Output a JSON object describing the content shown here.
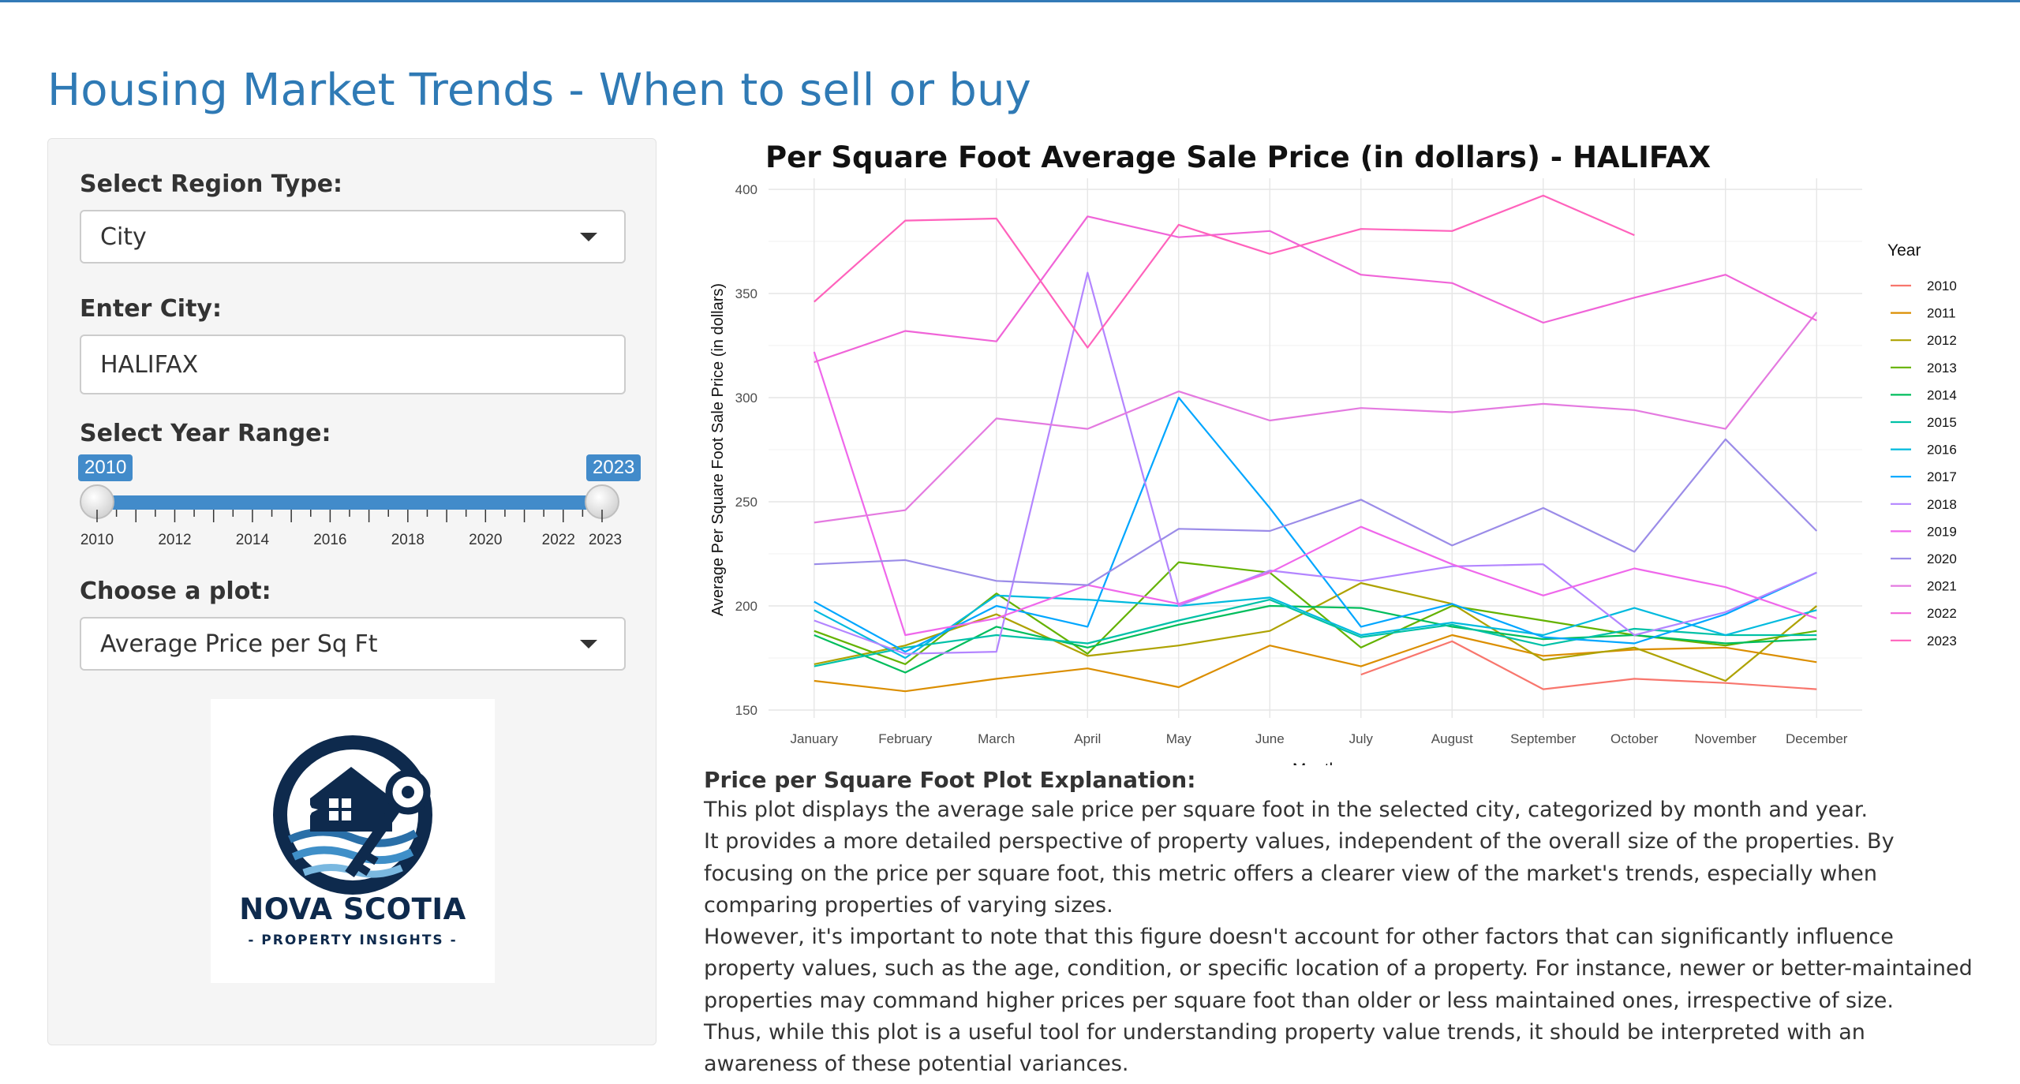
{
  "app": {
    "title": "Housing Market Trends - When to sell or buy"
  },
  "sidebar": {
    "region_type_label": "Select Region Type:",
    "region_type_value": "City",
    "city_label": "Enter City:",
    "city_value": "HALIFAX",
    "year_range_label": "Select Year Range:",
    "year_range": {
      "min": 2010,
      "max": 2023,
      "from": 2010,
      "to": 2023,
      "from_label": "2010",
      "to_label": "2023",
      "tick_labels": [
        "2010",
        "2012",
        "2014",
        "2016",
        "2018",
        "2020",
        "2022",
        "2023"
      ]
    },
    "plot_label": "Choose a plot:",
    "plot_value": "Average Price per Sq Ft",
    "logo": {
      "title": "NOVA SCOTIA",
      "subtitle": "- PROPERTY INSIGHTS -",
      "color": "#0e2a4d"
    }
  },
  "chart_data": {
    "type": "line",
    "title": "Per Square Foot Average Sale Price (in dollars) -  HALIFAX",
    "xlabel": "Month",
    "ylabel": "Average Per Square Foot Sale Price (in dollars)",
    "ylim": [
      150,
      400
    ],
    "yticks": [
      "150",
      "200",
      "250",
      "300",
      "350",
      "400"
    ],
    "grid": true,
    "legend_title": "Year",
    "legend_position": "right",
    "categories": [
      "January",
      "February",
      "March",
      "April",
      "May",
      "June",
      "July",
      "August",
      "September",
      "October",
      "November",
      "December"
    ],
    "series": [
      {
        "name": "2010",
        "color": "#F8766D",
        "values": [
          null,
          null,
          null,
          null,
          null,
          null,
          167,
          183,
          160,
          165,
          163,
          160
        ]
      },
      {
        "name": "2011",
        "color": "#DB8E00",
        "values": [
          164,
          159,
          165,
          170,
          161,
          181,
          171,
          186,
          176,
          179,
          180,
          173
        ]
      },
      {
        "name": "2012",
        "color": "#AEA200",
        "values": [
          172,
          181,
          196,
          176,
          181,
          188,
          211,
          201,
          174,
          180,
          164,
          200
        ]
      },
      {
        "name": "2013",
        "color": "#64B200",
        "values": [
          188,
          172,
          206,
          177,
          221,
          216,
          180,
          200,
          193,
          186,
          181,
          188
        ]
      },
      {
        "name": "2014",
        "color": "#00BD5C",
        "values": [
          186,
          168,
          190,
          180,
          191,
          200,
          199,
          190,
          184,
          186,
          182,
          184
        ]
      },
      {
        "name": "2015",
        "color": "#00C1A7",
        "values": [
          171,
          180,
          186,
          182,
          193,
          203,
          185,
          191,
          181,
          189,
          186,
          186
        ]
      },
      {
        "name": "2016",
        "color": "#00BADE",
        "values": [
          198,
          175,
          205,
          203,
          200,
          204,
          186,
          192,
          186,
          199,
          186,
          198
        ]
      },
      {
        "name": "2017",
        "color": "#00A6FF",
        "values": [
          202,
          178,
          200,
          190,
          300,
          247,
          190,
          201,
          185,
          182,
          196,
          216
        ]
      },
      {
        "name": "2018",
        "color": "#B385FF",
        "values": [
          193,
          177,
          178,
          360,
          200,
          217,
          212,
          219,
          220,
          186,
          197,
          216
        ]
      },
      {
        "name": "2019",
        "color": "#EF67EB",
        "values": [
          322,
          186,
          194,
          210,
          201,
          216,
          238,
          220,
          205,
          218,
          209,
          194
        ]
      },
      {
        "name": "2020",
        "color": "#9B8CE8",
        "values": [
          220,
          222,
          212,
          210,
          237,
          236,
          251,
          229,
          247,
          226,
          280,
          236
        ]
      },
      {
        "name": "2021",
        "color": "#E47AE0",
        "values": [
          240,
          246,
          290,
          285,
          303,
          289,
          295,
          293,
          297,
          294,
          285,
          341
        ]
      },
      {
        "name": "2022",
        "color": "#F064D8",
        "values": [
          317,
          332,
          327,
          387,
          377,
          380,
          359,
          355,
          336,
          348,
          359,
          337
        ]
      },
      {
        "name": "2023",
        "color": "#FF62BC",
        "values": [
          346,
          385,
          386,
          324,
          383,
          369,
          381,
          380,
          397,
          378,
          null,
          null
        ]
      }
    ]
  },
  "explanation": {
    "heading": "Price per Square Foot Plot Explanation:",
    "paragraphs": [
      "This plot displays the average sale price per square foot in the selected city, categorized by month and year.",
      "It provides a more detailed perspective of property values, independent of the overall size of the properties. By focusing on the price per square foot, this metric offers a clearer view of the market's trends, especially when comparing properties of varying sizes.",
      "However, it's important to note that this figure doesn't account for other factors that can significantly influence property values, such as the age, condition, or specific location of a property. For instance, newer or better-maintained properties may command higher prices per square foot than older or less maintained ones, irrespective of size.",
      "Thus, while this plot is a useful tool for understanding property value trends, it should be interpreted with an awareness of these potential variances."
    ]
  }
}
